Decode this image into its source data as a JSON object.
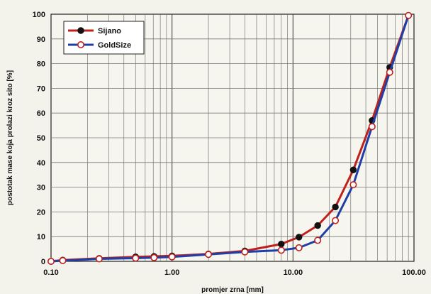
{
  "chart_data": {
    "type": "line",
    "xlabel": "promjer zrna [mm]",
    "ylabel": "postotak mase koja prolazi kroz sito [%]",
    "xscale": "log",
    "xlim": [
      0.1,
      100
    ],
    "ylim": [
      0,
      100
    ],
    "xticks": [
      "0.10",
      "1.00",
      "10.00",
      "100.00"
    ],
    "yticks": [
      "0",
      "10",
      "20",
      "30",
      "40",
      "50",
      "60",
      "70",
      "80",
      "90",
      "100"
    ],
    "grid": true,
    "legend_position": "top-left",
    "series": [
      {
        "name": "Sijano",
        "color": "#111111",
        "line_color": "#c0201c",
        "marker": "filled-circle",
        "points": [
          [
            0.1,
            0
          ],
          [
            0.125,
            0.5
          ],
          [
            0.25,
            1.2
          ],
          [
            0.5,
            1.8
          ],
          [
            0.71,
            2.0
          ],
          [
            1.0,
            2.2
          ],
          [
            2.0,
            3.0
          ],
          [
            4.0,
            4.2
          ],
          [
            8.0,
            7.0
          ],
          [
            11.2,
            9.8
          ],
          [
            16.0,
            14.5
          ],
          [
            22.4,
            22.0
          ],
          [
            31.5,
            37.0
          ],
          [
            45.0,
            57.0
          ],
          [
            63.0,
            78.5
          ],
          [
            90.0,
            99.5
          ]
        ]
      },
      {
        "name": "GoldSize",
        "color": "#c0201c",
        "line_color": "#1f3fa8",
        "marker": "open-circle",
        "points": [
          [
            0.1,
            0
          ],
          [
            0.125,
            0.3
          ],
          [
            0.25,
            1.0
          ],
          [
            0.5,
            1.3
          ],
          [
            0.71,
            1.5
          ],
          [
            1.0,
            1.8
          ],
          [
            2.0,
            2.8
          ],
          [
            4.0,
            3.8
          ],
          [
            8.0,
            4.5
          ],
          [
            11.2,
            5.5
          ],
          [
            16.0,
            8.5
          ],
          [
            22.4,
            16.5
          ],
          [
            31.5,
            31.0
          ],
          [
            45.0,
            54.5
          ],
          [
            63.0,
            76.5
          ],
          [
            90.0,
            99.5
          ]
        ]
      }
    ]
  }
}
